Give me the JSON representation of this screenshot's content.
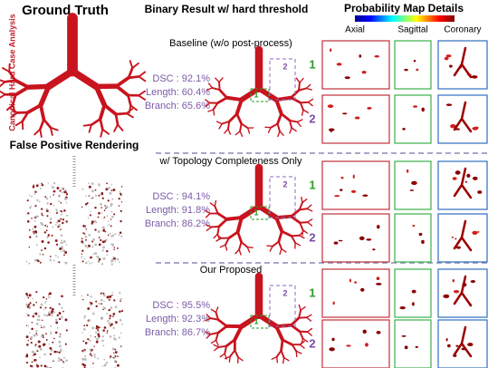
{
  "left": {
    "title": "Ground Truth",
    "side_label": "Canonical Hard Case Analysis",
    "fp_title": "False Positive Rendering"
  },
  "header": {
    "binary": "Binary Result w/ hard threshold",
    "prob": "Probability Map Details",
    "views": [
      "Axial",
      "Sagittal",
      "Coronary"
    ]
  },
  "rows": [
    {
      "label": "Baseline (w/o post-process)",
      "metrics": [
        "DSC : 92.1%",
        "Length: 60.4%",
        "Branch: 65.6%"
      ],
      "cases": [
        "1",
        "2"
      ]
    },
    {
      "label": "w/ Topology Completeness Only",
      "metrics": [
        "DSC : 94.1%",
        "Length: 91.8%",
        "Branch: 86.2%"
      ],
      "cases": [
        "1",
        "2"
      ]
    },
    {
      "label": "Our Proposed",
      "metrics": [
        "DSC : 95.5%",
        "Length: 92.3%",
        "Branch: 86.7%"
      ],
      "cases": [
        "1",
        "2"
      ]
    }
  ]
}
